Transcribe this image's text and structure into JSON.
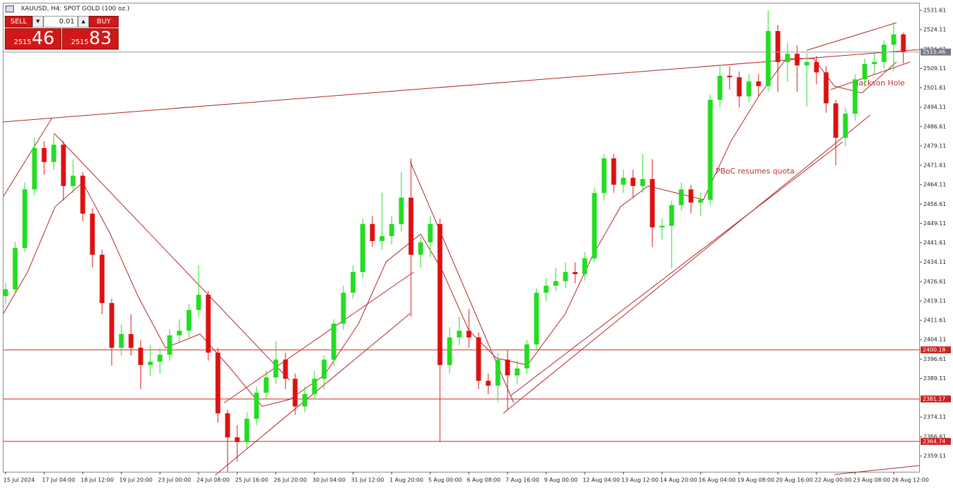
{
  "trade_panel": {
    "sell": "SELL",
    "buy": "BUY",
    "lot": "0.01",
    "bid_big": "2515",
    "bid_small": "46",
    "ask_big": "2515",
    "ask_small": "83"
  },
  "chart_data": {
    "type": "candlestick",
    "title": "XAUUSD, H4:  SPOT GOLD (100 oz.)",
    "categories": [
      "15 Jul 2024",
      null,
      null,
      null,
      "17 Jul 04:00",
      null,
      null,
      null,
      "18 Jul 12:00",
      null,
      null,
      null,
      "19 Jul 20:00",
      null,
      null,
      null,
      "23 Jul 00:00",
      null,
      null,
      null,
      "24 Jul 08:00",
      null,
      null,
      null,
      "25 Jul 16:00",
      null,
      null,
      null,
      "26 Jul 20:00",
      null,
      null,
      null,
      "30 Jul 04:00",
      null,
      null,
      null,
      "31 Jul 12:00",
      null,
      null,
      null,
      "1 Aug 20:00",
      null,
      null,
      null,
      "5 Aug 00:00",
      null,
      null,
      null,
      "6 Aug 08:00",
      null,
      null,
      null,
      "7 Aug 16:00",
      null,
      null,
      null,
      "9 Aug 00:00",
      null,
      null,
      null,
      "12 Aug 04:00",
      null,
      null,
      null,
      "13 Aug 12:00",
      null,
      null,
      null,
      "14 Aug 20:00",
      null,
      null,
      null,
      "16 Aug 04:00",
      null,
      null,
      null,
      "19 Aug 08:00",
      null,
      null,
      null,
      "20 Aug 16:00",
      null,
      null,
      null,
      "22 Aug 00:00",
      null,
      null,
      null,
      "23 Aug 08:00",
      null,
      null,
      null,
      "26 Aug 12:00",
      null
    ],
    "open": [
      2421.0,
      2423.6,
      2439.6,
      2462.3,
      2478.3,
      2472.9,
      2479.6,
      2463.6,
      2467.6,
      2452.9,
      2437.0,
      2418.3,
      2401.0,
      2406.3,
      2401.0,
      2394.3,
      2395.6,
      2398.3,
      2405.8,
      2407.6,
      2415.6,
      2421.5,
      2399.1,
      2375.6,
      2366.3,
      2364.5,
      2373.5,
      2383.6,
      2389.5,
      2396.4,
      2389.0,
      2378.3,
      2383.1,
      2389.0,
      2396.4,
      2410.3,
      2422.3,
      2430.3,
      2448.9,
      2442.3,
      2444.2,
      2448.9,
      2459.1,
      2437.0,
      2441.8,
      2448.9,
      2394.3,
      2405.0,
      2407.6,
      2405.0,
      2388.2,
      2386.3,
      2396.4,
      2390.3,
      2393.0,
      2402.3,
      2422.3,
      2425.0,
      2426.8,
      2430.3,
      2429.5,
      2435.6,
      2460.9,
      2474.3,
      2464.1,
      2466.8,
      2463.6,
      2466.3,
      2447.6,
      2448.2,
      2456.2,
      2462.3,
      2457.2,
      2458.3,
      2497.0,
      2506.3,
      2505.7,
      2498.3,
      2504.1,
      2502.3,
      2523.6,
      2511.6,
      2514.8,
      2510.3,
      2511.6,
      2507.6,
      2495.6,
      2482.3,
      2491.6,
      2504.9,
      2510.8,
      2511.6,
      2518.3,
      2522.3
    ],
    "high": [
      2426,
      2442,
      2465,
      2482.3,
      2481,
      2483.6,
      2481,
      2474,
      2469,
      2455,
      2439,
      2420,
      2410,
      2414,
      2404,
      2402,
      2401,
      2408,
      2412,
      2418,
      2433,
      2423,
      2401,
      2377,
      2371,
      2376,
      2386,
      2392,
      2403.6,
      2399,
      2391,
      2386,
      2392,
      2398,
      2412,
      2425,
      2433,
      2451,
      2452,
      2461,
      2452,
      2469,
      2474.3,
      2444,
      2452,
      2451,
      2409,
      2413,
      2416,
      2407,
      2391,
      2399,
      2400,
      2396,
      2404,
      2424,
      2428,
      2432,
      2434,
      2434,
      2438,
      2463,
      2476,
      2476,
      2470,
      2470,
      2476,
      2474,
      2451,
      2458,
      2465,
      2464,
      2461,
      2499,
      2510,
      2510,
      2508,
      2507,
      2507,
      2531.6,
      2526,
      2519,
      2518,
      2515,
      2514,
      2510,
      2497,
      2494,
      2507,
      2513,
      2515,
      2520,
      2526.8,
      2523
    ],
    "low": [
      2418,
      2422,
      2438,
      2460,
      2468,
      2470,
      2458,
      2461,
      2450,
      2432,
      2414,
      2394,
      2398,
      2398,
      2385,
      2390,
      2391,
      2396,
      2403,
      2405,
      2413,
      2396,
      2372,
      2353,
      2357,
      2362,
      2371,
      2381,
      2387,
      2385,
      2375,
      2376,
      2381,
      2385,
      2394,
      2408,
      2420,
      2428,
      2440,
      2439,
      2441,
      2446,
      2413,
      2432,
      2436,
      2364.5,
      2391,
      2402,
      2401,
      2385,
      2383,
      2380,
      2377,
      2387,
      2391,
      2400,
      2419,
      2423,
      2424,
      2426,
      2427,
      2434,
      2458,
      2461,
      2461,
      2459,
      2461,
      2440,
      2443,
      2431.6,
      2454,
      2453,
      2452,
      2456,
      2494,
      2501,
      2494,
      2496,
      2498,
      2500,
      2500,
      2504,
      2500,
      2494.3,
      2503,
      2492,
      2471.6,
      2479,
      2489,
      2502,
      2507,
      2509,
      2508,
      2511
    ],
    "close": [
      2423.6,
      2439.6,
      2462.3,
      2478.3,
      2472.9,
      2479.6,
      2463.6,
      2467.6,
      2452.9,
      2437.0,
      2418.3,
      2401.0,
      2406.3,
      2401.0,
      2394.3,
      2395.6,
      2398.3,
      2405.8,
      2407.6,
      2415.6,
      2421.5,
      2399.1,
      2375.6,
      2366.3,
      2364.5,
      2373.5,
      2383.6,
      2389.5,
      2396.4,
      2389.0,
      2378.3,
      2383.1,
      2389.0,
      2396.4,
      2410.3,
      2422.3,
      2430.3,
      2448.9,
      2442.3,
      2444.2,
      2448.9,
      2459.1,
      2437.0,
      2441.8,
      2448.9,
      2394.3,
      2405.0,
      2407.6,
      2405.0,
      2388.2,
      2386.3,
      2396.4,
      2390.3,
      2393.0,
      2402.3,
      2422.3,
      2425.0,
      2426.8,
      2430.3,
      2429.5,
      2435.6,
      2460.9,
      2474.3,
      2464.1,
      2466.8,
      2463.6,
      2466.3,
      2447.6,
      2448.2,
      2456.2,
      2462.3,
      2457.2,
      2458.3,
      2497.0,
      2506.3,
      2505.7,
      2498.3,
      2504.1,
      2502.3,
      2523.6,
      2511.6,
      2514.8,
      2510.3,
      2511.6,
      2507.6,
      2495.6,
      2482.3,
      2491.6,
      2504.9,
      2510.8,
      2511.6,
      2518.3,
      2522.3,
      2515.46
    ],
    "up_color": "#22dd22",
    "down_color": "#dd1111",
    "ylim": [
      2352.98,
      2534.28
    ],
    "yticks": [
      2531.61,
      2524.11,
      2516.61,
      2509.11,
      2501.61,
      2494.11,
      2486.61,
      2479.11,
      2471.61,
      2464.11,
      2456.61,
      2449.11,
      2441.61,
      2434.11,
      2426.61,
      2419.11,
      2411.61,
      2404.11,
      2396.61,
      2389.11,
      2374.11,
      2366.61,
      2359.11
    ],
    "hlines": [
      2400.18,
      2381.17,
      2364.74
    ],
    "hline_color": "#cc2222",
    "annotations": [
      "PBoC resumes quota",
      "Jackson Hole"
    ]
  }
}
